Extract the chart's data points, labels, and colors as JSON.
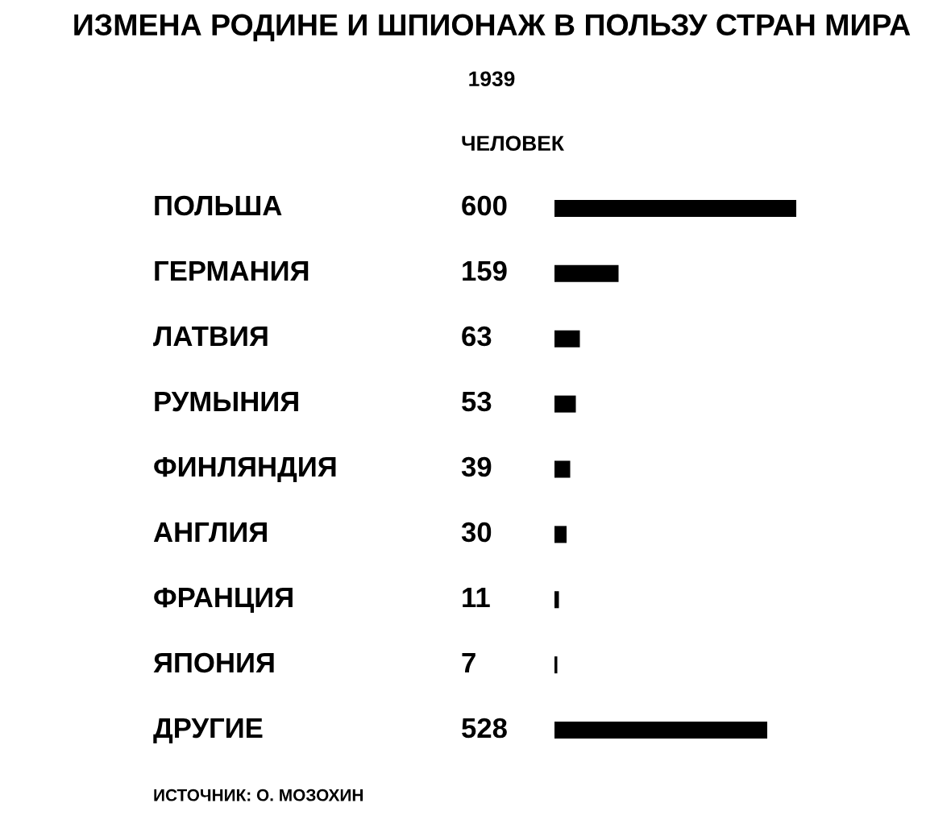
{
  "chart_data": {
    "type": "bar",
    "orientation": "horizontal",
    "title": "ИЗМЕНА РОДИНЕ И ШПИОНАЖ В ПОЛЬЗУ СТРАН МИРА",
    "subtitle": "1939",
    "xlabel": "ЧЕЛОВЕК",
    "categories": [
      "ПОЛЬША",
      "ГЕРМАНИЯ",
      "ЛАТВИЯ",
      "РУМЫНИЯ",
      "ФИНЛЯНДИЯ",
      "АНГЛИЯ",
      "ФРАНЦИЯ",
      "ЯПОНИЯ",
      "ДРУГИЕ"
    ],
    "values": [
      600,
      159,
      63,
      53,
      39,
      30,
      11,
      7,
      528
    ],
    "color": "#000000",
    "data_labels": true,
    "annotations": [
      "ИСТОЧНИК: О. МОЗОХИН"
    ]
  }
}
